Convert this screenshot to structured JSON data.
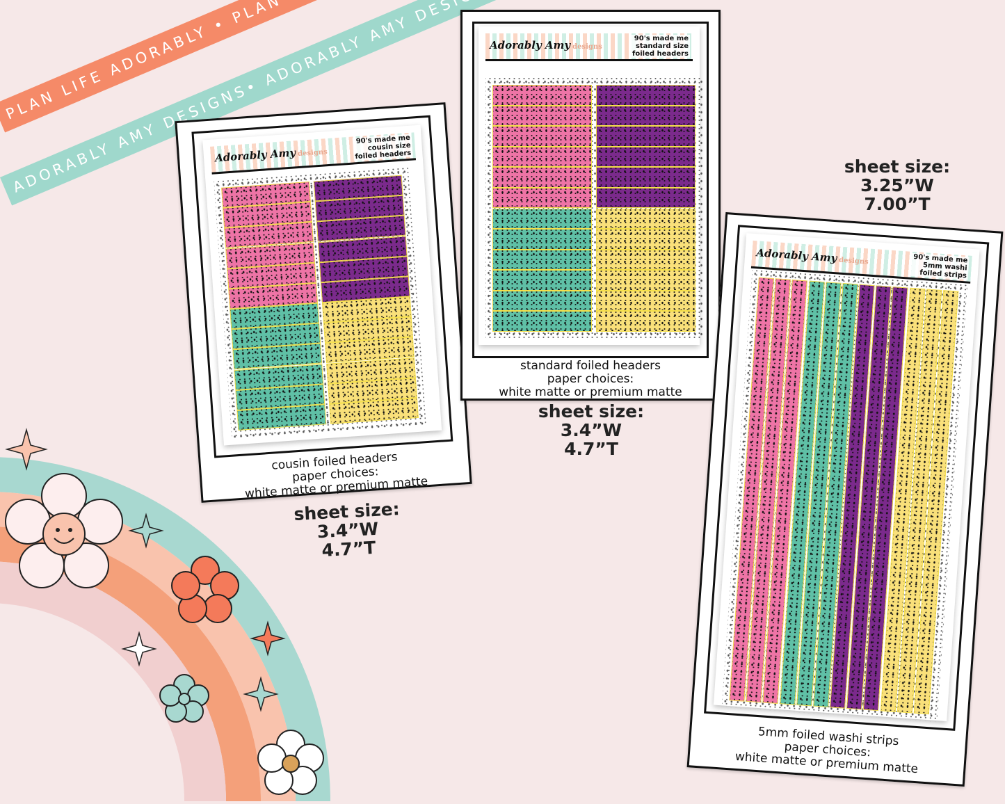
{
  "colors": {
    "background": "#f6e8e8",
    "pink": "#ee74a6",
    "purple": "#7b2a8c",
    "teal": "#5fc0a6",
    "yellow": "#f9e07a",
    "ribbon_orange": "#f58a68",
    "ribbon_teal": "#9fd8cc",
    "foil": "#f5e04a"
  },
  "ribbons": {
    "orange": "PLAN LIFE ADORABLY • PLAN LIFE ADORABLY • PLAN LIFE ADORABLY •",
    "teal": "ADORABLY AMY DESIGNS• ADORABLY AMY DESIGNS• ADORABLY AMY DESIGNS•"
  },
  "logo": {
    "script": "Adorably Amy",
    "word": "designs"
  },
  "products": [
    {
      "title": [
        "90's made me",
        "cousin size",
        "foiled headers"
      ],
      "caption": [
        "cousin foiled headers",
        "paper choices:",
        "white matte or premium matte"
      ],
      "size": [
        "sheet size:",
        "3.4”W",
        "4.7”T"
      ]
    },
    {
      "title": [
        "90's made me",
        "standard size",
        "foiled headers"
      ],
      "caption": [
        "standard foiled headers",
        "paper choices:",
        "white matte or premium matte"
      ],
      "size": [
        "sheet size:",
        "3.4”W",
        "4.7”T"
      ]
    },
    {
      "title": [
        "90's made me",
        "5mm washi",
        "foiled strips"
      ],
      "caption": [
        "5mm foiled washi strips",
        "paper choices:",
        "white matte or premium matte"
      ],
      "size": [
        "sheet size:",
        "3.25”W",
        "7.00”T"
      ]
    }
  ],
  "decor": {
    "icons": [
      "rainbow-icon",
      "smiley-flower-icon",
      "flower-icon",
      "sparkle-icon"
    ]
  }
}
